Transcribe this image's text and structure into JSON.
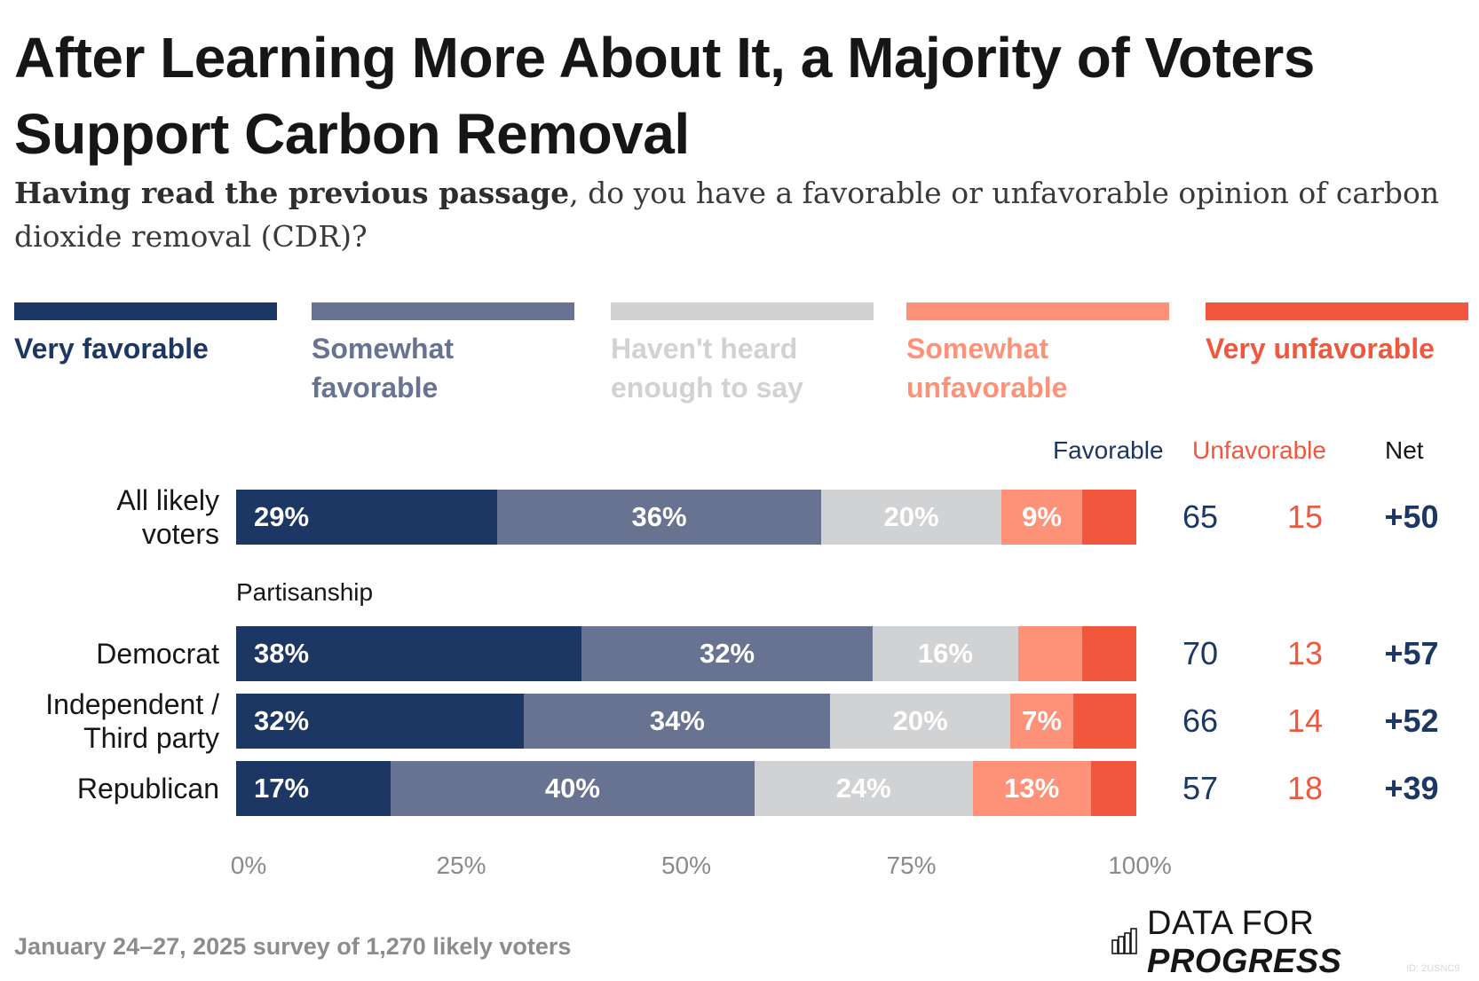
{
  "title": "After Learning More About It, a Majority of Voters Support Carbon Removal",
  "subtitle_bold": "Having read the previous passage",
  "subtitle_rest": ", do you have a favorable or unfavorable opinion of carbon dioxide removal (CDR)?",
  "colors": {
    "very_favorable": "#1d3764",
    "somewhat_favorable": "#687291",
    "havent_heard": "#d1d2d4",
    "somewhat_unfavorable": "#fd9278",
    "very_unfavorable": "#f0573c"
  },
  "column_headers": {
    "favorable": "Favorable",
    "unfavorable": "Unfavorable",
    "net": "Net"
  },
  "group_label": "Partisanship",
  "footer": "January 24–27, 2025 survey of 1,270 likely voters",
  "logo": {
    "icon": "bar-chart-icon",
    "text_light": "DATA FOR ",
    "text_bold": "PROGRESS"
  },
  "chart_id": "ID: 2USNC9",
  "chart_data": {
    "type": "bar",
    "orientation": "horizontal-stacked",
    "title": "After Learning More About It, a Majority of Voters Support Carbon Removal",
    "xlabel": "",
    "ylabel": "",
    "xlim": [
      0,
      100
    ],
    "x_ticks": [
      "0%",
      "25%",
      "50%",
      "75%",
      "100%"
    ],
    "legend_position": "top",
    "categories": [
      "All likely voters",
      "Democrat",
      "Independent / Third party",
      "Republican"
    ],
    "series": [
      {
        "name": "Very favorable",
        "values": [
          29,
          38,
          32,
          17
        ],
        "labels": [
          "29%",
          "38%",
          "32%",
          "17%"
        ]
      },
      {
        "name": "Somewhat favorable",
        "values": [
          36,
          32,
          34,
          40
        ],
        "labels": [
          "36%",
          "32%",
          "34%",
          "40%"
        ]
      },
      {
        "name": "Haven't heard enough to say",
        "values": [
          20,
          16,
          20,
          24
        ],
        "labels": [
          "20%",
          "16%",
          "20%",
          "24%"
        ]
      },
      {
        "name": "Somewhat unfavorable",
        "values": [
          9,
          7,
          7,
          13
        ],
        "labels": [
          "9%",
          "",
          "7%",
          "13%"
        ]
      },
      {
        "name": "Very unfavorable",
        "values": [
          6,
          6,
          7,
          5
        ],
        "labels": [
          "",
          "",
          "",
          ""
        ]
      }
    ],
    "summary": [
      {
        "category": "All likely voters",
        "favorable": "65",
        "unfavorable": "15",
        "net": "+50"
      },
      {
        "category": "Democrat",
        "favorable": "70",
        "unfavorable": "13",
        "net": "+57"
      },
      {
        "category": "Independent / Third party",
        "favorable": "66",
        "unfavorable": "14",
        "net": "+52"
      },
      {
        "category": "Republican",
        "favorable": "57",
        "unfavorable": "18",
        "net": "+39"
      }
    ]
  },
  "legend": [
    {
      "label_line1": "Very favorable",
      "label_line2": ""
    },
    {
      "label_line1": "Somewhat",
      "label_line2": "favorable"
    },
    {
      "label_line1": "Haven't heard",
      "label_line2": "enough to say"
    },
    {
      "label_line1": "Somewhat",
      "label_line2": "unfavorable"
    },
    {
      "label_line1": "Very unfavorable",
      "label_line2": ""
    }
  ],
  "row_labels": [
    {
      "line1": "All likely",
      "line2": "voters"
    },
    {
      "line1": "Democrat",
      "line2": ""
    },
    {
      "line1": "Independent /",
      "line2": "Third party"
    },
    {
      "line1": "Republican",
      "line2": ""
    }
  ]
}
